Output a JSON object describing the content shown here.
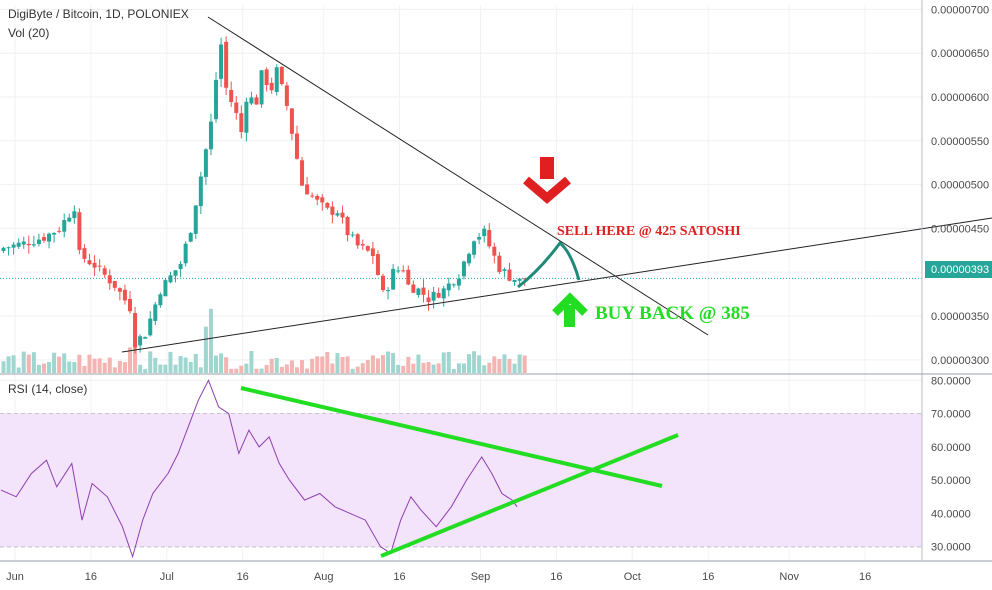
{
  "chart_data": [
    {
      "type": "candlestick",
      "title": "DigiByte / Bitcoin, 1D, POLONIEX",
      "volume_label": "Vol (20)",
      "y_ticks": [
        "0.00000700",
        "0.00000650",
        "0.00000600",
        "0.00000550",
        "0.00000500",
        "0.00000450",
        "0.00000400",
        "0.00000350",
        "0.00000300"
      ],
      "y_tick_values": [
        700,
        650,
        600,
        550,
        500,
        450,
        400,
        350,
        300
      ],
      "ylim": [
        285,
        705
      ],
      "price_unit_note": "values in satoshi (1e-8 BTC)",
      "last_price_label": "0.00000393",
      "last_price": 393,
      "annotations": {
        "sell": "SELL HERE  @ 425 SATOSHI",
        "buy": "BUY BACK @ 385"
      },
      "colors": {
        "up": "#26a69a",
        "down": "#ef5350",
        "sell": "#e02020",
        "buy": "#22dd22",
        "arc": "#1f8a7a"
      }
    },
    {
      "type": "line",
      "title": "RSI (14, close)",
      "y_ticks": [
        "80.0000",
        "70.0000",
        "60.0000",
        "50.0000",
        "40.0000",
        "30.0000"
      ],
      "y_tick_values": [
        80,
        70,
        60,
        50,
        40,
        30
      ],
      "ylim": [
        26,
        81
      ],
      "band": [
        30,
        70
      ],
      "colors": {
        "line": "#8e3fb0",
        "band": "#f3e3fb",
        "trend": "#22dd22"
      }
    }
  ],
  "x_axis": {
    "labels": [
      "Jun",
      "16",
      "Jul",
      "16",
      "Aug",
      "16",
      "Sep",
      "16",
      "Oct",
      "16",
      "Nov",
      "16"
    ]
  }
}
